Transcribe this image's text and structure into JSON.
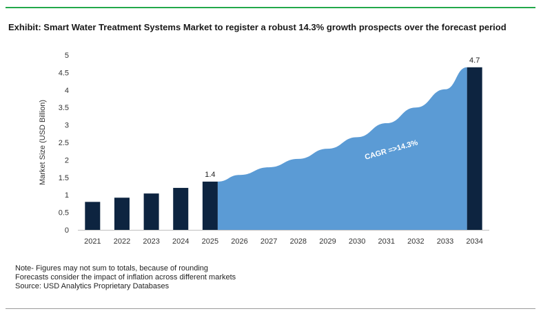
{
  "title": "Exhibit: Smart Water Treatment Systems Market to register a robust 14.3% growth prospects over the forecast period",
  "notes": [
    "Note- Figures may not sum to totals, because of rounding",
    "Forecasts consider the impact of inflation across different markets",
    "Source: USD Analytics Proprietary Databases"
  ],
  "colors": {
    "bar": "#0d2440",
    "area": "#5b9bd5",
    "title_rule": "#22a84a",
    "cagr_text": "#ffffff"
  },
  "chart_data": {
    "type": "bar",
    "ylabel": "Market Size (USD Billion)",
    "ylim": [
      0,
      5
    ],
    "yticks": [
      "0",
      "0.5",
      "1",
      "1.5",
      "2",
      "2.5",
      "3",
      "3.5",
      "4",
      "4.5",
      "5"
    ],
    "categories": [
      "2021",
      "2022",
      "2023",
      "2024",
      "2025",
      "2026",
      "2027",
      "2028",
      "2029",
      "2030",
      "2031",
      "2032",
      "2033",
      "2034"
    ],
    "bars": [
      {
        "x": "2021",
        "value": 0.8
      },
      {
        "x": "2022",
        "value": 0.92
      },
      {
        "x": "2023",
        "value": 1.04
      },
      {
        "x": "2024",
        "value": 1.2
      },
      {
        "x": "2025",
        "value": 1.38,
        "label": "1.4"
      },
      {
        "x": "2034",
        "value": 4.65,
        "label": "4.7"
      }
    ],
    "area": {
      "x": [
        "2025",
        "2026",
        "2027",
        "2028",
        "2029",
        "2030",
        "2031",
        "2032",
        "2033",
        "2034"
      ],
      "values": [
        1.38,
        1.57,
        1.79,
        2.03,
        2.32,
        2.65,
        3.05,
        3.5,
        4.02,
        4.65
      ]
    },
    "annotation": "CAGR =>14.3%",
    "grid": false
  }
}
